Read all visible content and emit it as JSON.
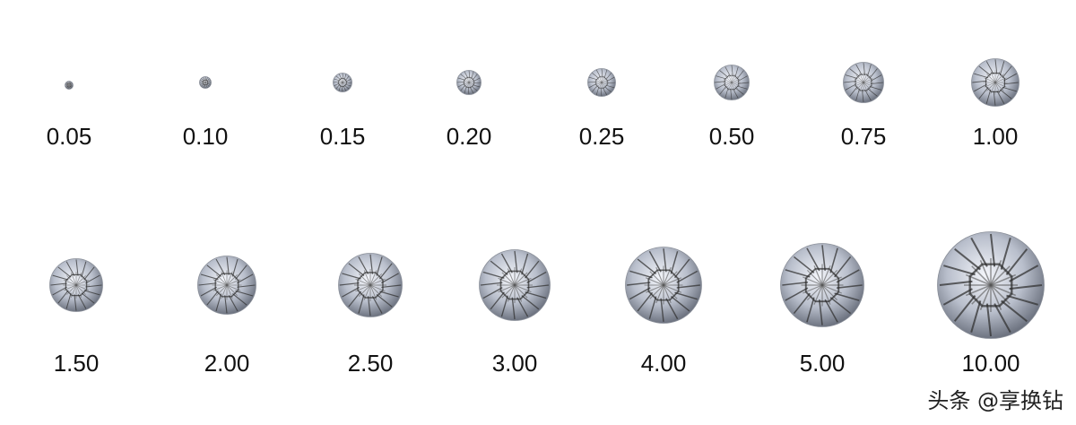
{
  "rows": [
    {
      "items": [
        {
          "carat": "0.05"
        },
        {
          "carat": "0.10"
        },
        {
          "carat": "0.15"
        },
        {
          "carat": "0.20"
        },
        {
          "carat": "0.25"
        },
        {
          "carat": "0.50"
        },
        {
          "carat": "0.75"
        },
        {
          "carat": "1.00"
        }
      ]
    },
    {
      "items": [
        {
          "carat": "1.50"
        },
        {
          "carat": "2.00"
        },
        {
          "carat": "2.50"
        },
        {
          "carat": "3.00"
        },
        {
          "carat": "4.00"
        },
        {
          "carat": "5.00"
        },
        {
          "carat": "10.00"
        }
      ]
    }
  ],
  "watermark": "头条 @享换钻",
  "icon": "round-brilliant-diamond",
  "colors": {
    "text": "#111111",
    "background": "#ffffff"
  }
}
